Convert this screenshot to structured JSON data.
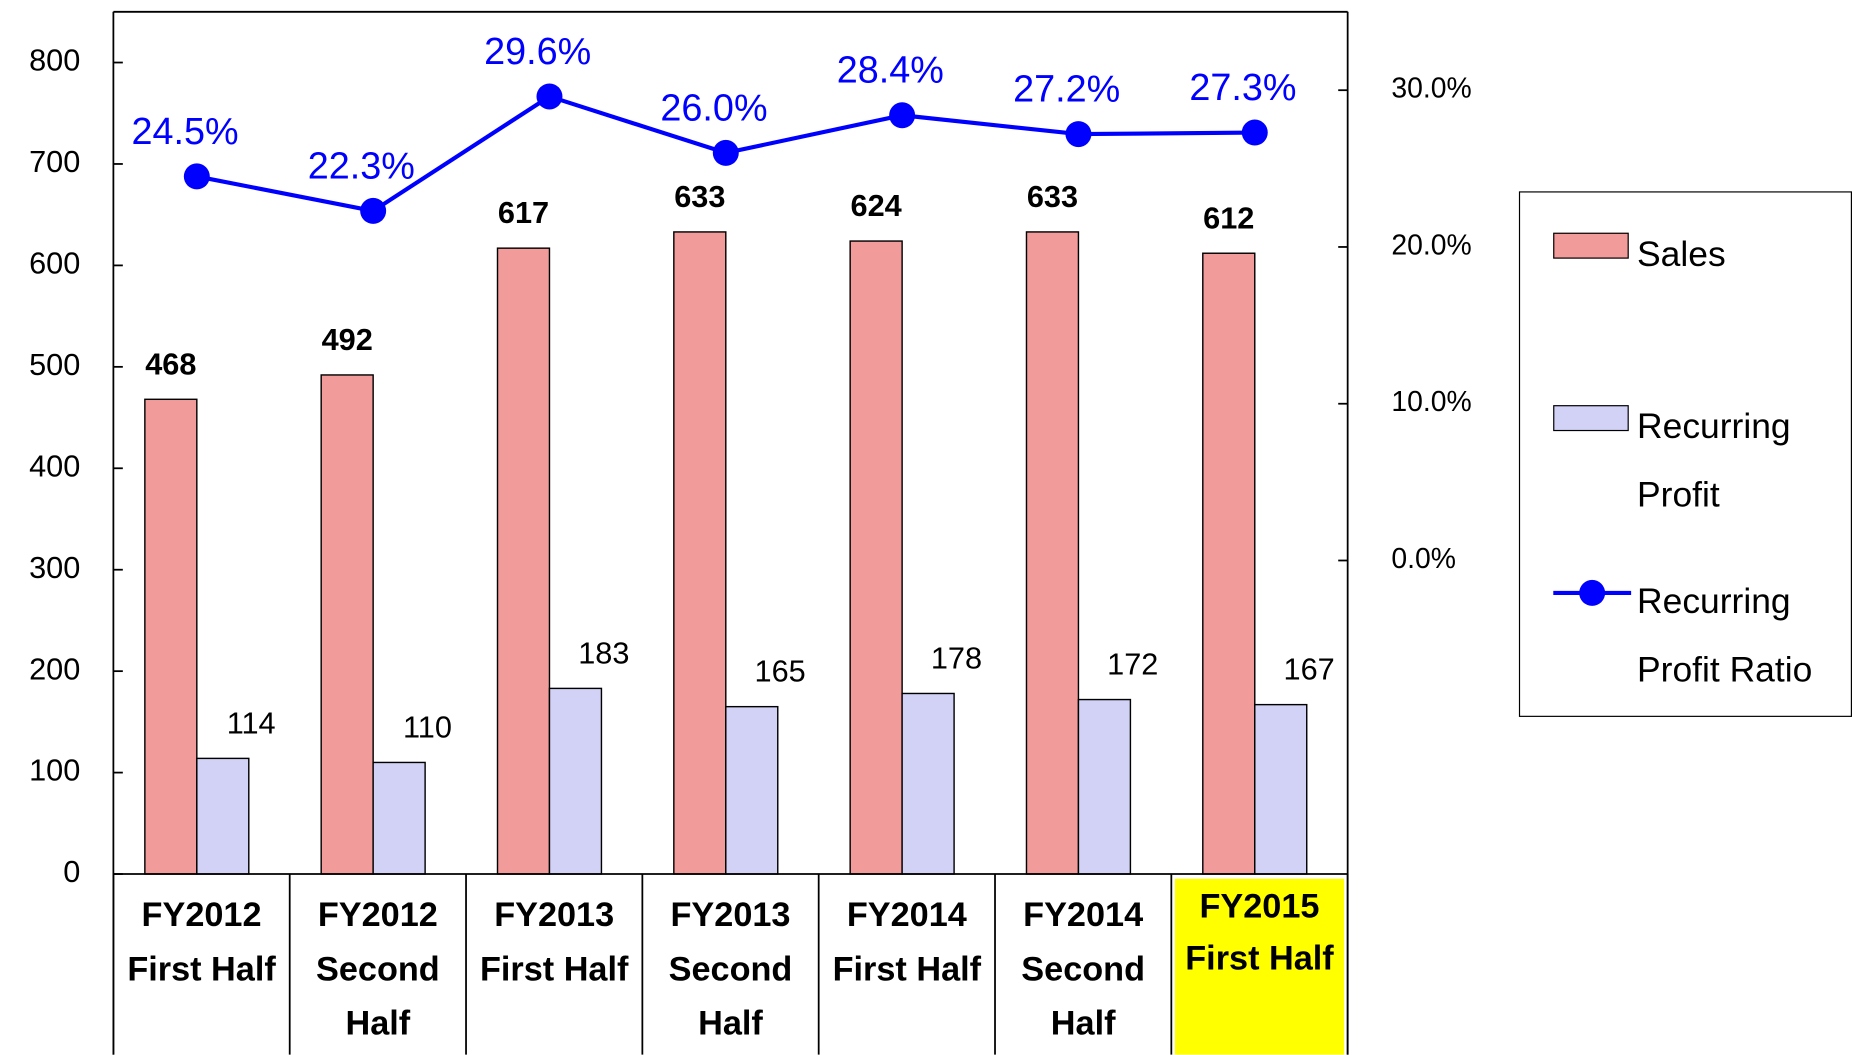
{
  "chart_data": {
    "type": "bar",
    "categories": [
      "FY2012 First Half",
      "FY2012 Second Half",
      "FY2013 First Half",
      "FY2013 Second Half",
      "FY2014 First Half",
      "FY2014 Second Half",
      "FY2015 First Half"
    ],
    "series": [
      {
        "name": "Sales",
        "type": "bar",
        "color": "#f29b9b",
        "values": [
          468,
          492,
          617,
          633,
          624,
          633,
          612
        ]
      },
      {
        "name": "Recurring Profit",
        "type": "bar",
        "color": "#d2d2f7",
        "values": [
          114,
          110,
          183,
          165,
          178,
          172,
          167
        ]
      },
      {
        "name": "Recurring Profit Ratio",
        "type": "line",
        "axis": "y2",
        "color": "#0000ff",
        "values": [
          24.5,
          22.3,
          29.6,
          26.0,
          28.4,
          27.2,
          27.3
        ],
        "value_labels": [
          "24.5%",
          "22.3%",
          "29.6%",
          "26.0%",
          "28.4%",
          "27.2%",
          "27.3%"
        ]
      }
    ],
    "ylim": [
      0,
      850
    ],
    "yticks": [
      0,
      100,
      200,
      300,
      400,
      500,
      600,
      700,
      800
    ],
    "y2lim": [
      -20,
      35
    ],
    "y2ticks": [
      {
        "value": 0,
        "label": "0.0%"
      },
      {
        "value": 10,
        "label": "10.0%"
      },
      {
        "value": 20,
        "label": "20.0%"
      },
      {
        "value": 30,
        "label": "30.0%"
      }
    ],
    "highlight_index": 6,
    "highlight_color": "#ffff00",
    "legend": "right"
  }
}
